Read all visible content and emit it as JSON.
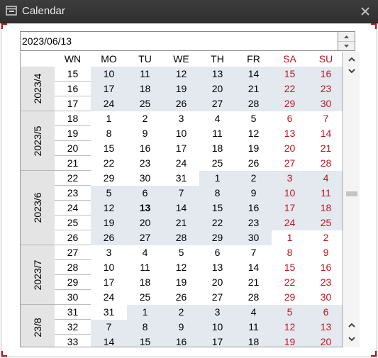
{
  "window": {
    "title": "Calendar",
    "title_icon": "calendar-window-icon",
    "close_icon": "close-icon"
  },
  "date_input": {
    "value": "2023/06/13"
  },
  "colors": {
    "weekend": "#c0141c",
    "alt_month_bg": "#e4e9f0",
    "month_band_bg": "#e4e4e4"
  },
  "calendar": {
    "headers": [
      "WN",
      "MO",
      "TU",
      "WE",
      "TH",
      "FR",
      "SA",
      "SU"
    ],
    "selected_day": "13",
    "months": [
      {
        "label": "2023/4",
        "first_week": 0,
        "last_week": 2
      },
      {
        "label": "2023/5",
        "first_week": 3,
        "last_week": 6
      },
      {
        "label": "2023/6",
        "first_week": 7,
        "last_week": 11
      },
      {
        "label": "2023/7",
        "first_week": 12,
        "last_week": 15
      },
      {
        "label": "23/8",
        "first_week": 16,
        "last_week": 18
      }
    ],
    "weeks": [
      {
        "wn": "15",
        "days": [
          "10",
          "11",
          "12",
          "13",
          "14",
          "15",
          "16"
        ],
        "month": [
          0,
          0,
          0,
          0,
          0,
          0,
          0
        ]
      },
      {
        "wn": "16",
        "days": [
          "17",
          "18",
          "19",
          "20",
          "21",
          "22",
          "23"
        ],
        "month": [
          0,
          0,
          0,
          0,
          0,
          0,
          0
        ]
      },
      {
        "wn": "17",
        "days": [
          "24",
          "25",
          "26",
          "27",
          "28",
          "29",
          "30"
        ],
        "month": [
          0,
          0,
          0,
          0,
          0,
          0,
          0
        ]
      },
      {
        "wn": "18",
        "days": [
          "1",
          "2",
          "3",
          "4",
          "5",
          "6",
          "7"
        ],
        "month": [
          1,
          1,
          1,
          1,
          1,
          1,
          1
        ]
      },
      {
        "wn": "19",
        "days": [
          "8",
          "9",
          "10",
          "11",
          "12",
          "13",
          "14"
        ],
        "month": [
          1,
          1,
          1,
          1,
          1,
          1,
          1
        ]
      },
      {
        "wn": "20",
        "days": [
          "15",
          "16",
          "17",
          "18",
          "19",
          "20",
          "21"
        ],
        "month": [
          1,
          1,
          1,
          1,
          1,
          1,
          1
        ]
      },
      {
        "wn": "21",
        "days": [
          "22",
          "23",
          "24",
          "25",
          "26",
          "27",
          "28"
        ],
        "month": [
          1,
          1,
          1,
          1,
          1,
          1,
          1
        ]
      },
      {
        "wn": "22",
        "days": [
          "29",
          "30",
          "31",
          "1",
          "2",
          "3",
          "4"
        ],
        "month": [
          1,
          1,
          1,
          2,
          2,
          2,
          2
        ]
      },
      {
        "wn": "23",
        "days": [
          "5",
          "6",
          "7",
          "8",
          "9",
          "10",
          "11"
        ],
        "month": [
          2,
          2,
          2,
          2,
          2,
          2,
          2
        ]
      },
      {
        "wn": "24",
        "days": [
          "12",
          "13",
          "14",
          "15",
          "16",
          "17",
          "18"
        ],
        "month": [
          2,
          2,
          2,
          2,
          2,
          2,
          2
        ]
      },
      {
        "wn": "25",
        "days": [
          "19",
          "20",
          "21",
          "22",
          "23",
          "24",
          "25"
        ],
        "month": [
          2,
          2,
          2,
          2,
          2,
          2,
          2
        ]
      },
      {
        "wn": "26",
        "days": [
          "26",
          "27",
          "28",
          "29",
          "30",
          "1",
          "2"
        ],
        "month": [
          2,
          2,
          2,
          2,
          2,
          3,
          3
        ]
      },
      {
        "wn": "27",
        "days": [
          "3",
          "4",
          "5",
          "6",
          "7",
          "8",
          "9"
        ],
        "month": [
          3,
          3,
          3,
          3,
          3,
          3,
          3
        ]
      },
      {
        "wn": "28",
        "days": [
          "10",
          "11",
          "12",
          "13",
          "14",
          "15",
          "16"
        ],
        "month": [
          3,
          3,
          3,
          3,
          3,
          3,
          3
        ]
      },
      {
        "wn": "29",
        "days": [
          "17",
          "18",
          "19",
          "20",
          "21",
          "22",
          "23"
        ],
        "month": [
          3,
          3,
          3,
          3,
          3,
          3,
          3
        ]
      },
      {
        "wn": "30",
        "days": [
          "24",
          "25",
          "26",
          "27",
          "28",
          "29",
          "30"
        ],
        "month": [
          3,
          3,
          3,
          3,
          3,
          3,
          3
        ]
      },
      {
        "wn": "31",
        "days": [
          "31",
          "1",
          "2",
          "3",
          "4",
          "5",
          "6"
        ],
        "month": [
          3,
          4,
          4,
          4,
          4,
          4,
          4
        ]
      },
      {
        "wn": "32",
        "days": [
          "7",
          "8",
          "9",
          "10",
          "11",
          "12",
          "13"
        ],
        "month": [
          4,
          4,
          4,
          4,
          4,
          4,
          4
        ]
      },
      {
        "wn": "33",
        "days": [
          "14",
          "15",
          "16",
          "17",
          "18",
          "19",
          "20"
        ],
        "month": [
          4,
          4,
          4,
          4,
          4,
          4,
          4
        ]
      }
    ]
  },
  "scrollbar": {
    "up_icon": "chevron-up-icon",
    "down_icon": "chevron-down-icon"
  }
}
